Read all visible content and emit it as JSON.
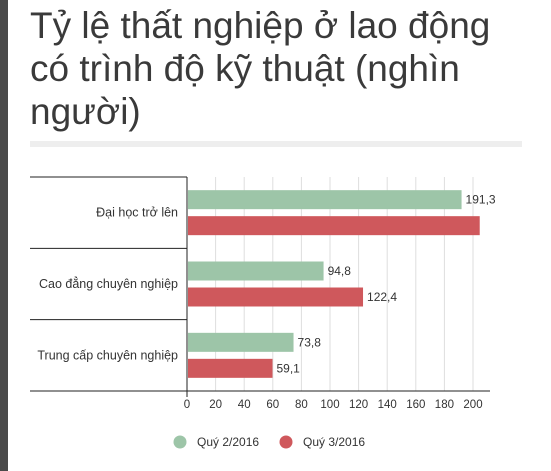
{
  "title": "Tỷ lệ thất nghiệp ở lao động có trình độ kỹ thuật (nghìn người)",
  "colors": {
    "q2": "#9dc5a8",
    "q3": "#cf585c",
    "axis": "#222222",
    "grid": "#dedede",
    "text": "#333333"
  },
  "chart_data": {
    "type": "bar",
    "orientation": "horizontal",
    "title": "Tỷ lệ thất nghiệp ở lao động có trình độ kỹ thuật (nghìn người)",
    "categories": [
      "Đại học trở lên",
      "Cao đẳng chuyên nghiệp",
      "Trung cấp chuyên nghiệp"
    ],
    "series": [
      {
        "name": "Quý 2/2016",
        "values": [
          191.3,
          94.8,
          73.8
        ],
        "labels": [
          "191,3",
          "94,8",
          "73,8"
        ],
        "color": "#9dc5a8"
      },
      {
        "name": "Quý 3/2016",
        "values": [
          204,
          122.4,
          59.1
        ],
        "labels": [
          "",
          "122,4",
          "59,1"
        ],
        "color": "#cf585c"
      }
    ],
    "xlim": [
      0,
      210
    ],
    "xticks": [
      0,
      20,
      40,
      60,
      80,
      100,
      120,
      140,
      160,
      180,
      200
    ],
    "xlabel": "",
    "ylabel": "",
    "grid": true,
    "legend_position": "bottom"
  }
}
